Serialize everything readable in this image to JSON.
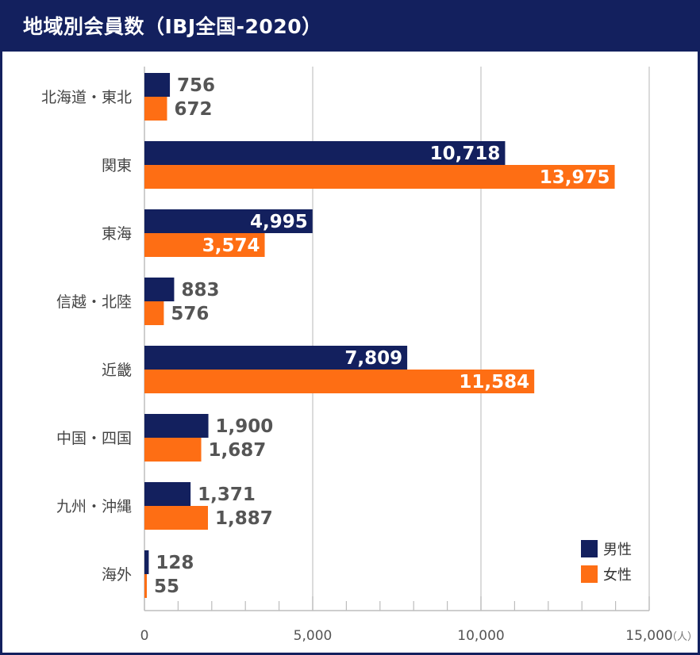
{
  "header": {
    "title": "地域別会員数（IBJ全国-2020）"
  },
  "chart_data": {
    "type": "bar",
    "orientation": "horizontal",
    "categories": [
      "北海道・東北",
      "関東",
      "東海",
      "信越・北陸",
      "近畿",
      "中国・四国",
      "九州・沖縄",
      "海外"
    ],
    "series": [
      {
        "name": "男性",
        "color": "#13205e",
        "values": [
          756,
          10718,
          4995,
          883,
          7809,
          1900,
          1371,
          128
        ]
      },
      {
        "name": "女性",
        "color": "#fe6e14",
        "values": [
          672,
          13975,
          3574,
          576,
          11584,
          1687,
          1887,
          55
        ]
      }
    ],
    "data_labels": [
      [
        "756",
        "10,718",
        "4,995",
        "883",
        "7,809",
        "1,900",
        "1,371",
        "128"
      ],
      [
        "672",
        "13,975",
        "3,574",
        "576",
        "11,584",
        "1,687",
        "1,887",
        "55"
      ]
    ],
    "xlim": [
      0,
      15000
    ],
    "xticks": [
      0,
      5000,
      10000,
      15000
    ],
    "xtick_labels": [
      "0",
      "5,000",
      "10,000",
      "15,000"
    ],
    "xunit": "（人）",
    "legend_position": "bottom-right",
    "grid": true
  }
}
